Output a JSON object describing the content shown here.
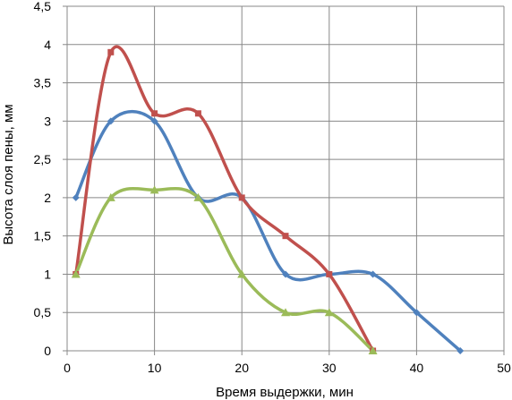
{
  "chart_data": {
    "type": "line",
    "title": "",
    "xlabel": "Время выдержки, мин",
    "ylabel": "Высота слоя пены, мм",
    "xlim": [
      0,
      50
    ],
    "ylim": [
      0,
      4.5
    ],
    "x_ticks": [
      "0",
      "10",
      "20",
      "30",
      "40",
      "50"
    ],
    "y_ticks": [
      "0",
      "0,5",
      "1",
      "1,5",
      "2",
      "2,5",
      "3",
      "3,5",
      "4",
      "4,5"
    ],
    "grid": true,
    "legend": "none",
    "series": [
      {
        "color": "#4f81bd",
        "marker": "diamond",
        "points": [
          [
            1,
            2.0
          ],
          [
            5,
            3.0
          ],
          [
            10,
            3.0
          ],
          [
            15,
            2.0
          ],
          [
            20,
            2.0
          ],
          [
            25,
            1.0
          ],
          [
            30,
            1.0
          ],
          [
            35,
            1.0
          ],
          [
            40,
            0.5
          ],
          [
            45,
            0.0
          ]
        ]
      },
      {
        "color": "#c0504d",
        "marker": "square",
        "points": [
          [
            1,
            1.0
          ],
          [
            5,
            3.9
          ],
          [
            10,
            3.1
          ],
          [
            15,
            3.1
          ],
          [
            20,
            2.0
          ],
          [
            25,
            1.5
          ],
          [
            30,
            1.0
          ],
          [
            35,
            0.0
          ]
        ]
      },
      {
        "color": "#9bbb59",
        "marker": "triangle",
        "points": [
          [
            1,
            1.0
          ],
          [
            5,
            2.0
          ],
          [
            10,
            2.1
          ],
          [
            15,
            2.0
          ],
          [
            20,
            1.0
          ],
          [
            25,
            0.5
          ],
          [
            30,
            0.5
          ],
          [
            35,
            0.0
          ]
        ]
      }
    ]
  }
}
